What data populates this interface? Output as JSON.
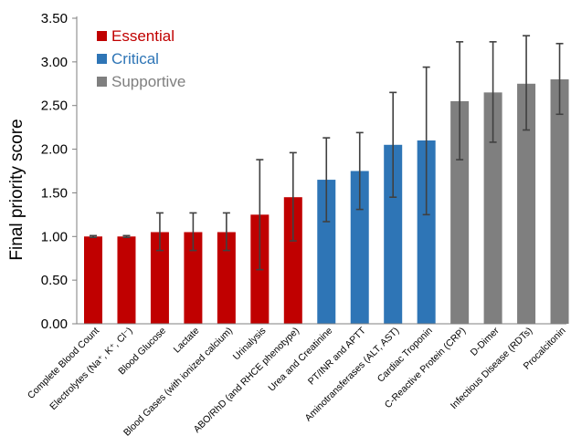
{
  "chart_data": {
    "type": "bar",
    "title": "",
    "xlabel": "",
    "ylabel": "Final priority score",
    "ylim": [
      0,
      3.5
    ],
    "yticks": [
      "0.00",
      "0.50",
      "1.00",
      "1.50",
      "2.00",
      "2.50",
      "3.00",
      "3.50"
    ],
    "grid": false,
    "legend_position": "top-left",
    "categories": [
      "Complete Blood Count",
      "Electrolytes (Na⁺, K⁺, Cl⁻)",
      "Blood Glucose",
      "Lactate",
      "Blood Gases (with ionized calcium)",
      "Urinalysis",
      "ABO/RhD (and RHCE phenotype)",
      "Urea and Creatinine",
      "PT/INR and APTT",
      "Aminotransferases (ALT, AST)",
      "Cardiac Troponin",
      "C-Reactive Protein (CRP)",
      "D-Dimer",
      "Infectious Disease (RDTs)",
      "Procalcitonin"
    ],
    "values": [
      1.0,
      1.0,
      1.05,
      1.05,
      1.05,
      1.25,
      1.45,
      1.65,
      1.75,
      2.05,
      2.1,
      2.55,
      2.65,
      2.75,
      2.8
    ],
    "error_low": [
      0.99,
      0.99,
      0.84,
      0.84,
      0.84,
      0.62,
      0.95,
      1.17,
      1.31,
      1.45,
      1.25,
      1.88,
      2.08,
      2.22,
      2.4
    ],
    "error_high": [
      1.01,
      1.01,
      1.27,
      1.27,
      1.27,
      1.88,
      1.96,
      2.13,
      2.19,
      2.65,
      2.94,
      3.23,
      3.23,
      3.3,
      3.21
    ],
    "groups": [
      "Essential",
      "Essential",
      "Essential",
      "Essential",
      "Essential",
      "Essential",
      "Essential",
      "Critical",
      "Critical",
      "Critical",
      "Critical",
      "Supportive",
      "Supportive",
      "Supportive",
      "Supportive"
    ],
    "legend": [
      {
        "name": "Essential",
        "color": "#c00000"
      },
      {
        "name": "Critical",
        "color": "#2e75b6"
      },
      {
        "name": "Supportive",
        "color": "#7f7f7f"
      }
    ]
  }
}
